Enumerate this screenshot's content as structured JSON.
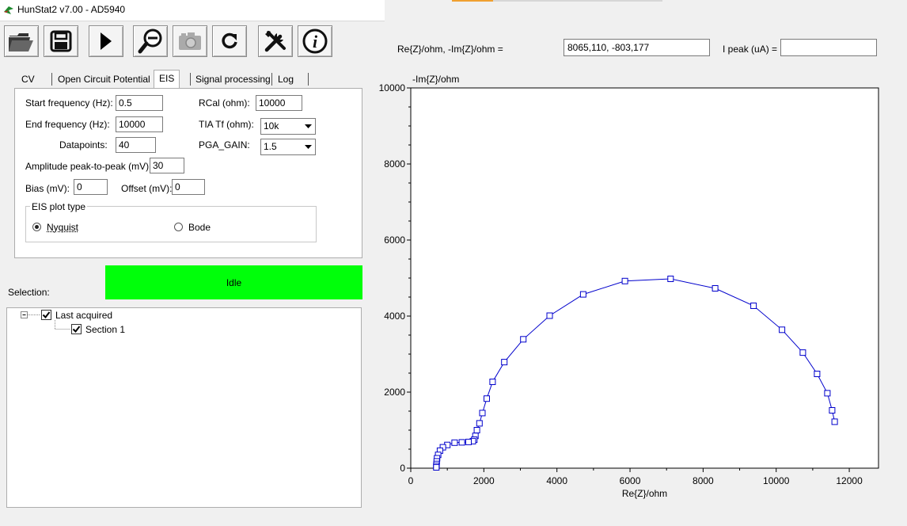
{
  "window": {
    "title": "HunStat2 v7.00 - AD5940"
  },
  "toolbar": {
    "buttons": [
      {
        "icon": "folder-open-icon"
      },
      {
        "icon": "save-icon"
      },
      {
        "icon": "play-icon"
      },
      {
        "icon": "zoom-out-icon"
      },
      {
        "icon": "camera-icon"
      },
      {
        "icon": "refresh-icon"
      },
      {
        "icon": "tools-icon"
      },
      {
        "icon": "info-icon"
      }
    ]
  },
  "tabs": {
    "items": [
      "CV",
      "Open Circuit Potential",
      "EIS",
      "Signal processing",
      "Log"
    ],
    "selected": "EIS"
  },
  "eis": {
    "start_freq_label": "Start frequency (Hz):",
    "start_freq_value": "0.5",
    "end_freq_label": "End frequency (Hz):",
    "end_freq_value": "10000",
    "datapoints_label": "Datapoints:",
    "datapoints_value": "40",
    "amplitude_label": "Amplitude peak-to-peak (mV):",
    "amplitude_value": "30",
    "bias_label": "Bias (mV):",
    "bias_value": "0",
    "offset_label": "Offset (mV):",
    "offset_value": "0",
    "rcal_label": "RCal (ohm):",
    "rcal_value": "10000",
    "tia_label": "TIA Tf (ohm):",
    "tia_value": "10k",
    "pga_label": "PGA_GAIN:",
    "pga_value": "1.5",
    "plot_type_label": "EIS plot type",
    "plot_type_options": [
      "Nyquist",
      "Bode"
    ],
    "plot_type_selected": "Nyquist"
  },
  "status": {
    "label": "Selection:",
    "text": "Idle",
    "color": "#00ff0a"
  },
  "tree": {
    "root": {
      "label": "Last acquired",
      "checked": true
    },
    "children": [
      {
        "label": "Section 1",
        "checked": true
      }
    ]
  },
  "readout": {
    "cursor_label": "Re{Z}/ohm, -Im{Z}/ohm =",
    "cursor_value": "8065,110, -803,177",
    "ipeak_label": "I peak (uA) =",
    "ipeak_value": ""
  },
  "chart_data": {
    "type": "scatter",
    "line_color": "#0000cc",
    "marker": "square",
    "xlabel": "Re{Z}/ohm",
    "ylabel": "-Im{Z}/ohm",
    "xlim": [
      0,
      12800
    ],
    "ylim": [
      0,
      10000
    ],
    "xticks": [
      0,
      2000,
      4000,
      6000,
      8000,
      10000,
      12000
    ],
    "yticks": [
      0,
      2000,
      4000,
      6000,
      8000,
      10000
    ],
    "grid": false,
    "series": [
      {
        "points": [
          [
            11600,
            1220
          ],
          [
            11530,
            1520
          ],
          [
            11400,
            1970
          ],
          [
            11120,
            2480
          ],
          [
            10730,
            3040
          ],
          [
            10160,
            3640
          ],
          [
            9380,
            4270
          ],
          [
            8330,
            4730
          ],
          [
            7110,
            4980
          ],
          [
            5860,
            4920
          ],
          [
            4720,
            4570
          ],
          [
            3800,
            4010
          ],
          [
            3080,
            3390
          ],
          [
            2560,
            2790
          ],
          [
            2240,
            2270
          ],
          [
            2080,
            1830
          ],
          [
            1960,
            1450
          ],
          [
            1880,
            1180
          ],
          [
            1810,
            1000
          ],
          [
            1770,
            850
          ],
          [
            1740,
            750
          ],
          [
            1700,
            710
          ],
          [
            1580,
            690
          ],
          [
            1400,
            680
          ],
          [
            1200,
            670
          ],
          [
            1000,
            610
          ],
          [
            880,
            550
          ],
          [
            800,
            460
          ],
          [
            750,
            350
          ],
          [
            720,
            260
          ],
          [
            710,
            180
          ],
          [
            705,
            110
          ],
          [
            700,
            60
          ],
          [
            700,
            20
          ]
        ]
      }
    ]
  }
}
